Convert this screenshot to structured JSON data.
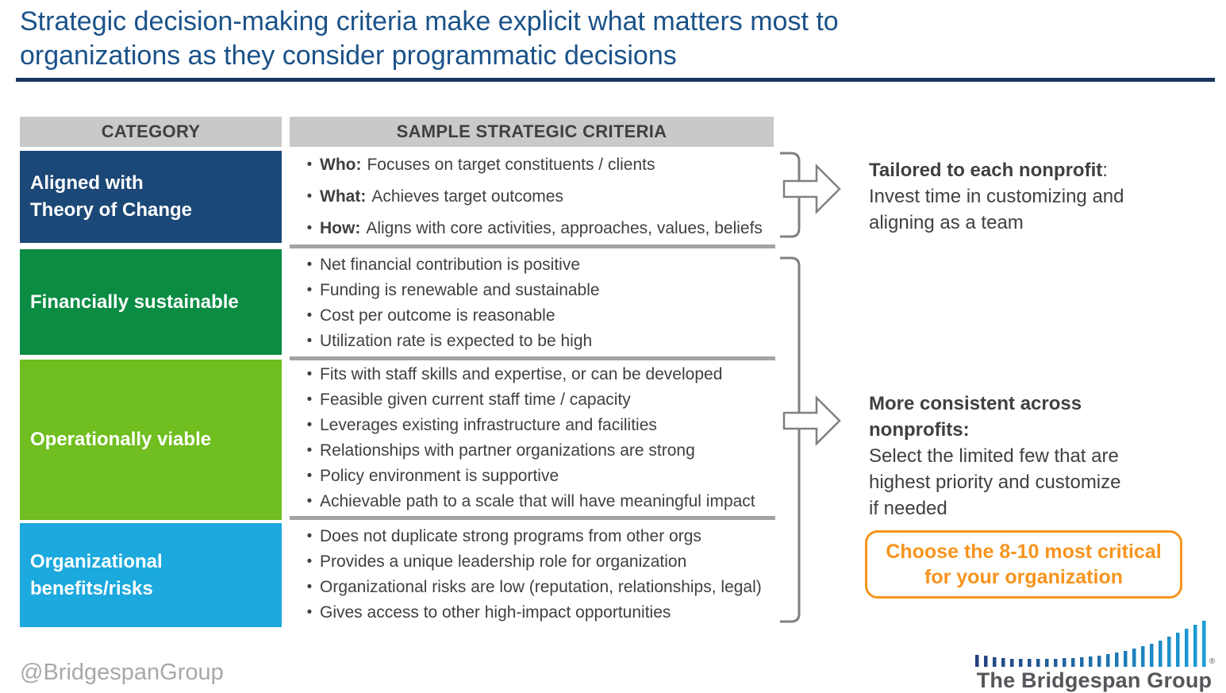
{
  "title": {
    "line1": "Strategic decision-making criteria make explicit what matters most to",
    "line2": "organizations as they consider programmatic decisions"
  },
  "table": {
    "headers": {
      "category": "CATEGORY",
      "criteria": "SAMPLE STRATEGIC CRITERIA"
    },
    "rows": [
      {
        "category_lines": [
          "Aligned with",
          "Theory of Change"
        ],
        "color": "#1B4876",
        "items": [
          {
            "b": "Who:",
            "t": "Focuses on target constituents / clients"
          },
          {
            "b": "What:",
            "t": "Achieves target outcomes"
          },
          {
            "b": "How:",
            "t": "Aligns with core activities, approaches, values, beliefs"
          }
        ]
      },
      {
        "category_lines": [
          "Financially sustainable"
        ],
        "color": "#0A8C43",
        "items": [
          {
            "b": "",
            "t": "Net financial contribution is positive"
          },
          {
            "b": "",
            "t": "Funding is renewable and sustainable"
          },
          {
            "b": "",
            "t": "Cost per outcome is reasonable"
          },
          {
            "b": "",
            "t": "Utilization rate is expected to be high"
          }
        ]
      },
      {
        "category_lines": [
          "Operationally viable"
        ],
        "color": "#70BE1F",
        "items": [
          {
            "b": "",
            "t": "Fits with staff skills and expertise, or can be developed"
          },
          {
            "b": "",
            "t": "Feasible given current staff time / capacity"
          },
          {
            "b": "",
            "t": "Leverages existing infrastructure and facilities"
          },
          {
            "b": "",
            "t": "Relationships with partner organizations are strong"
          },
          {
            "b": "",
            "t": "Policy environment is supportive"
          },
          {
            "b": "",
            "t": "Achievable path to a scale that will have meaningful impact"
          }
        ]
      },
      {
        "category_lines": [
          "Organizational",
          "benefits/risks"
        ],
        "color": "#1CA9DD",
        "items": [
          {
            "b": "",
            "t": "Does not duplicate strong programs from other orgs"
          },
          {
            "b": "",
            "t": "Provides a unique leadership role for organization"
          },
          {
            "b": "",
            "t": "Organizational risks are low (reputation, relationships, legal)"
          },
          {
            "b": "",
            "t": "Gives access to other high-impact opportunities"
          }
        ]
      }
    ]
  },
  "annotations": [
    {
      "heading": "Tailored to each nonprofit",
      "heading_suffix": ":",
      "lines": [
        "Invest time in customizing and",
        "aligning as a team"
      ]
    },
    {
      "heading": "More consistent across nonprofits:",
      "heading_suffix": "",
      "lines": [
        "Select the limited few that are",
        "highest priority and customize",
        "if needed"
      ]
    }
  ],
  "callout": {
    "line1": "Choose the 8-10 most critical",
    "line2": "for your organization",
    "color": "#F7941D"
  },
  "footer": {
    "social_handle": "@BridgespanGroup",
    "logo_text": "The Bridgespan Group",
    "registered_mark": "®"
  },
  "colors": {
    "title_blue": "#1A5289",
    "rule_navy": "#17375E",
    "header_gray": "#C9C9C9",
    "divider_gray": "#A3A3A3",
    "text_dark": "#404040",
    "bracket_gray": "#808080",
    "row_navy": "#1B4876",
    "row_green": "#0A8C43",
    "row_light_green": "#70BE1F",
    "row_cyan": "#1CA9DD",
    "callout_orange": "#F7941D",
    "footer_gray": "#A8A8A8",
    "logo_dark_blue": "#24407C",
    "logo_bright_blue": "#1B9DD9"
  }
}
